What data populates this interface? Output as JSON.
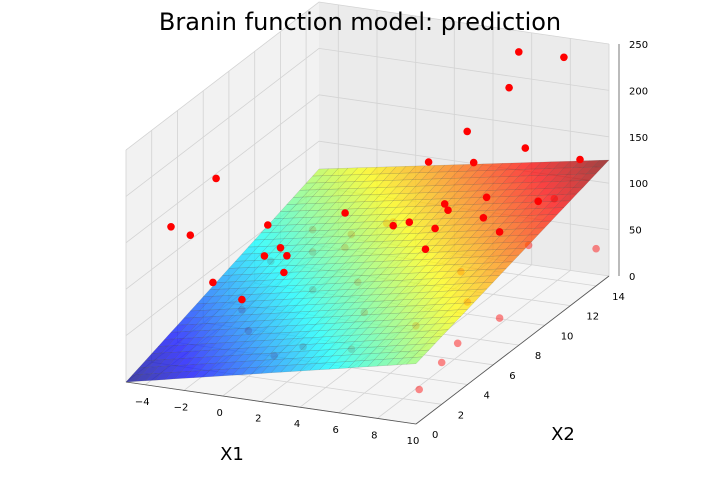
{
  "chart_data": {
    "type": "scatter",
    "title": "Branin function model: prediction",
    "xlabel": "X1",
    "ylabel": "X2",
    "zlabel": "",
    "xlim": [
      -5,
      10
    ],
    "ylim": [
      0,
      15
    ],
    "zlim": [
      0,
      250
    ],
    "x_ticks": [
      "−4",
      "−2",
      "0",
      "2",
      "4",
      "6",
      "8",
      "10"
    ],
    "y_ticks": [
      "0",
      "2",
      "4",
      "6",
      "8",
      "10",
      "12",
      "14"
    ],
    "z_ticks": [
      "0",
      "50",
      "100",
      "150",
      "200",
      "250"
    ],
    "grid": true,
    "colormap": "jet",
    "point_color": "#ff0000",
    "surface": {
      "description": "predicted linear surface",
      "z_corners": {
        "x_min_y_min": 0,
        "x_max_y_min": 65,
        "x_min_y_max": 70,
        "x_max_y_max": 125
      }
    },
    "points": [
      {
        "x": 2.0,
        "y": 0.5,
        "z": 185
      },
      {
        "x": 6.0,
        "y": 0.5,
        "z": 210
      },
      {
        "x": 2.5,
        "y": 1.0,
        "z": 130
      },
      {
        "x": 9.5,
        "y": 1.0,
        "z": 25
      },
      {
        "x": 10.0,
        "y": 2.0,
        "z": 45
      },
      {
        "x": 1.5,
        "y": 4.0,
        "z": 15
      },
      {
        "x": 4.0,
        "y": 4.0,
        "z": 20
      },
      {
        "x": -1.0,
        "y": 3.5,
        "z": 30
      },
      {
        "x": 7.5,
        "y": 7.0,
        "z": 5
      },
      {
        "x": 6.0,
        "y": 6.0,
        "z": 30
      },
      {
        "x": 3.0,
        "y": 6.5,
        "z": 30
      },
      {
        "x": 0.0,
        "y": 7.0,
        "z": 40
      },
      {
        "x": -3.0,
        "y": 6.0,
        "z": 20
      },
      {
        "x": -3.5,
        "y": 8.5,
        "z": 50
      },
      {
        "x": -2.0,
        "y": 8.0,
        "z": 60
      },
      {
        "x": 1.0,
        "y": 9.0,
        "z": 30
      },
      {
        "x": -4.5,
        "y": 10.5,
        "z": 20
      },
      {
        "x": -4.0,
        "y": 13.0,
        "z": 5
      },
      {
        "x": -5.0,
        "y": 14.5,
        "z": 10
      },
      {
        "x": -2.0,
        "y": 13.0,
        "z": 30
      },
      {
        "x": -1.0,
        "y": 11.0,
        "z": 40
      },
      {
        "x": 0.5,
        "y": 12.0,
        "z": 60
      },
      {
        "x": 1.5,
        "y": 11.0,
        "z": 75
      },
      {
        "x": 2.5,
        "y": 9.5,
        "z": 90
      },
      {
        "x": 4.0,
        "y": 11.5,
        "z": 90
      },
      {
        "x": 5.0,
        "y": 9.0,
        "z": 100
      },
      {
        "x": 6.5,
        "y": 10.5,
        "z": 100
      },
      {
        "x": 7.0,
        "y": 8.0,
        "z": 70
      },
      {
        "x": 8.0,
        "y": 9.5,
        "z": 100
      },
      {
        "x": 9.0,
        "y": 11.0,
        "z": 120
      },
      {
        "x": 10.0,
        "y": 6.5,
        "z": 45
      },
      {
        "x": 9.5,
        "y": 9.5,
        "z": 90
      },
      {
        "x": 9.0,
        "y": 5.5,
        "z": 70
      },
      {
        "x": 10.0,
        "y": 14.0,
        "z": 40
      },
      {
        "x": 8.5,
        "y": 13.0,
        "z": 100
      },
      {
        "x": 7.0,
        "y": 13.0,
        "z": 150
      },
      {
        "x": 5.5,
        "y": 14.0,
        "z": 200
      },
      {
        "x": 4.0,
        "y": 13.5,
        "z": 120
      },
      {
        "x": 3.0,
        "y": 14.5,
        "z": 140
      },
      {
        "x": 2.0,
        "y": 13.0,
        "z": 120
      },
      {
        "x": 6.0,
        "y": 14.0,
        "z": 240
      },
      {
        "x": 8.0,
        "y": 14.5,
        "z": 235
      },
      {
        "x": 9.5,
        "y": 13.5,
        "z": 140
      },
      {
        "x": 3.5,
        "y": 12.0,
        "z": 90
      },
      {
        "x": 6.0,
        "y": 11.5,
        "z": 110
      },
      {
        "x": 5.5,
        "y": 7.5,
        "z": 95
      },
      {
        "x": -5.0,
        "y": 5.0,
        "z": 105
      },
      {
        "x": -5.0,
        "y": 3.5,
        "z": 130
      },
      {
        "x": -5.0,
        "y": 7.0,
        "z": 145
      },
      {
        "x": -2.0,
        "y": 4.5,
        "z": 50
      },
      {
        "x": -3.0,
        "y": 9.0,
        "z": 55
      },
      {
        "x": -4.5,
        "y": 6.0,
        "z": 45
      },
      {
        "x": 1.0,
        "y": 2.5,
        "z": 20
      },
      {
        "x": 3.0,
        "y": 10.0,
        "z": 90
      }
    ]
  }
}
